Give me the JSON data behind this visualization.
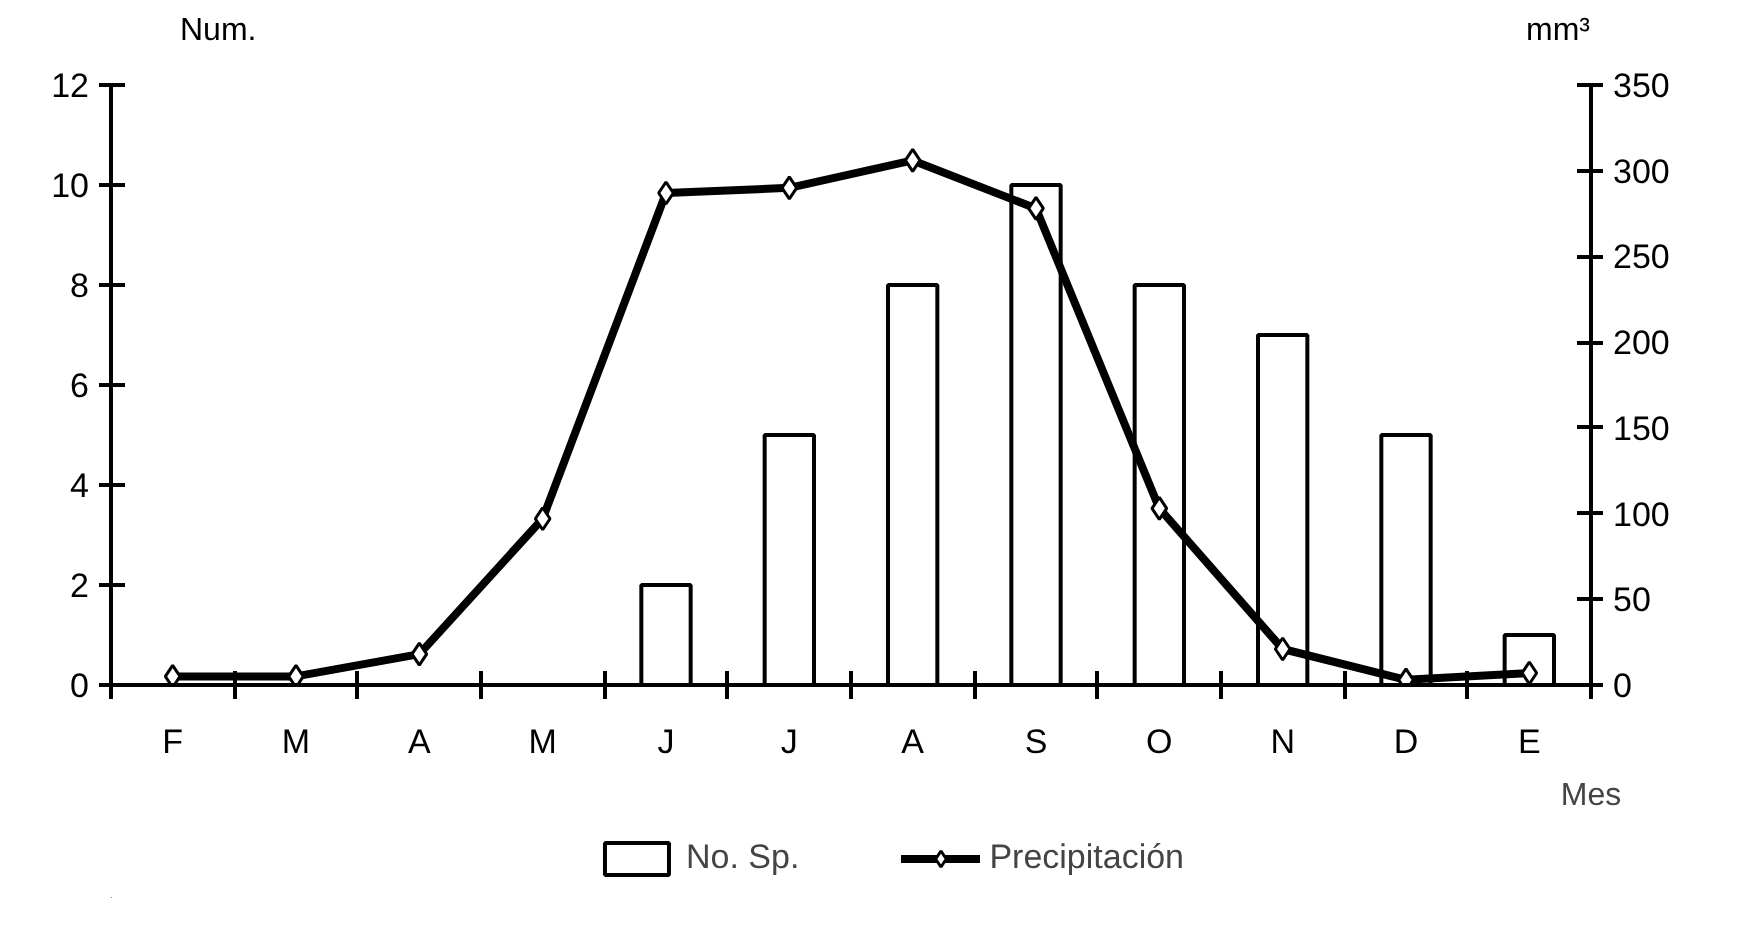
{
  "chart_data": {
    "type": "bar",
    "categories": [
      "F",
      "M",
      "A",
      "M",
      "J",
      "J",
      "A",
      "S",
      "O",
      "N",
      "D",
      "E"
    ],
    "xlabel": "Mes",
    "ylabel": "Num.",
    "y2label": "mm³",
    "ylim": [
      0,
      12
    ],
    "yticks": [
      0,
      2,
      4,
      6,
      8,
      10,
      12
    ],
    "y2lim": [
      0,
      350
    ],
    "y2ticks": [
      0,
      50,
      100,
      150,
      200,
      250,
      300,
      350
    ],
    "series": [
      {
        "name": "No. Sp.",
        "color": "#ffffff",
        "values": [
          null,
          null,
          null,
          null,
          2,
          5,
          8,
          10,
          8,
          7,
          5,
          1
        ]
      },
      {
        "name": "Precipitación",
        "type": "line",
        "axis": "y2",
        "color": "#000000",
        "marker": "diamond",
        "values": [
          5,
          5,
          18,
          97,
          287,
          290,
          306,
          278,
          103,
          21,
          3,
          7
        ]
      }
    ],
    "grid": false,
    "legend": "bottom"
  }
}
